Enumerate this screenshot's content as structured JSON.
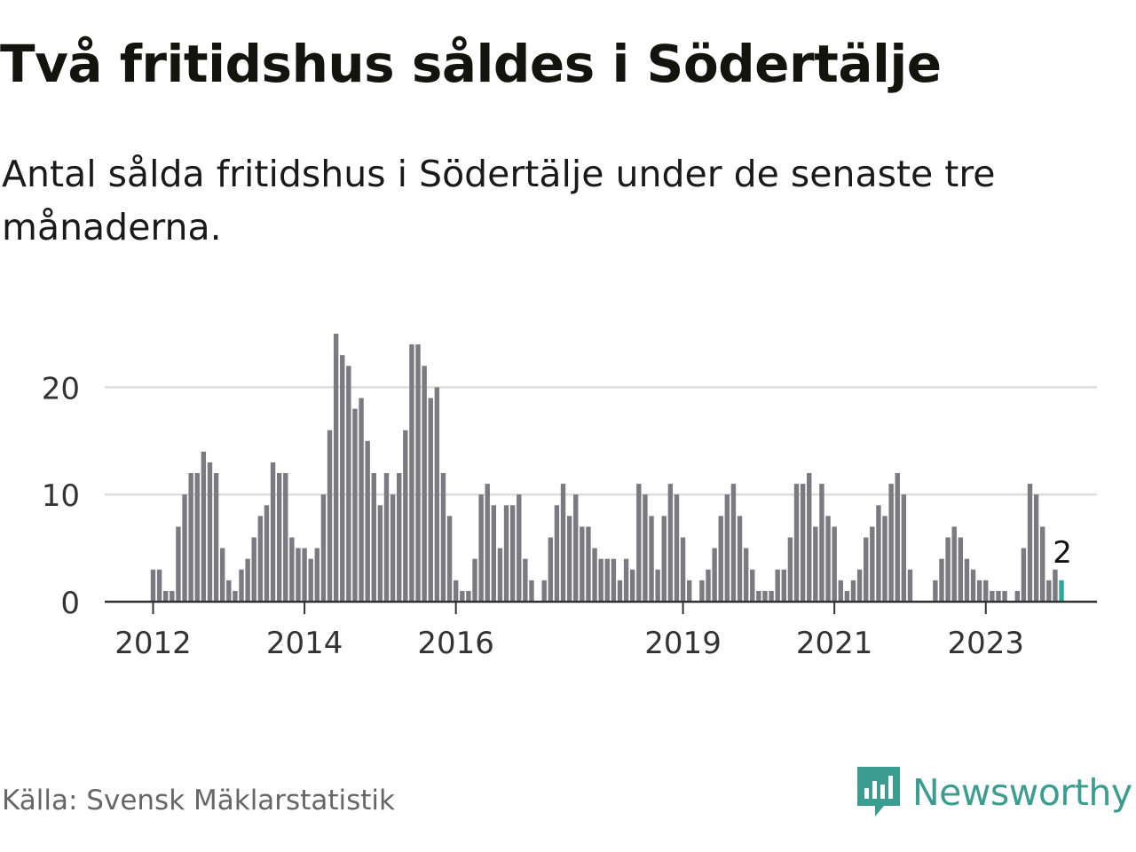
{
  "header": {
    "title": "Två fritidshus såldes i Södertälje",
    "subtitle": "Antal sålda fritidshus i Södertälje under de senaste tre månaderna."
  },
  "footer": {
    "source": "Källa: Svensk Mäklarstatistik",
    "brand": "Newsworthy"
  },
  "colors": {
    "bar": "#7b7a80",
    "highlight": "#2aa89a",
    "grid": "#dddddd",
    "axis": "#333333",
    "brand": "#3a9d8f"
  },
  "chart_data": {
    "type": "bar",
    "title": "Två fritidshus såldes i Södertälje",
    "xlabel": "",
    "ylabel": "",
    "ylim": [
      0,
      25
    ],
    "yticks": [
      0,
      10,
      20
    ],
    "xtick_labels": [
      {
        "label": "2012",
        "index": 0
      },
      {
        "label": "2014",
        "index": 24
      },
      {
        "label": "2016",
        "index": 48
      },
      {
        "label": "2019",
        "index": 84
      },
      {
        "label": "2021",
        "index": 108
      },
      {
        "label": "2023",
        "index": 132
      }
    ],
    "x_start_index": -1,
    "x_end_index": 149,
    "values": [
      3,
      3,
      1,
      1,
      7,
      10,
      12,
      12,
      14,
      13,
      12,
      5,
      2,
      1,
      3,
      4,
      6,
      8,
      9,
      13,
      12,
      12,
      6,
      5,
      5,
      4,
      5,
      10,
      16,
      25,
      23,
      22,
      18,
      19,
      15,
      12,
      9,
      12,
      10,
      12,
      16,
      24,
      24,
      22,
      19,
      20,
      12,
      8,
      2,
      1,
      1,
      4,
      10,
      11,
      9,
      5,
      9,
      9,
      10,
      4,
      2,
      0,
      2,
      6,
      9,
      11,
      8,
      10,
      7,
      7,
      5,
      4,
      4,
      4,
      2,
      4,
      3,
      11,
      10,
      8,
      3,
      8,
      11,
      10,
      6,
      2,
      0,
      2,
      3,
      5,
      8,
      10,
      11,
      8,
      5,
      3,
      1,
      1,
      1,
      3,
      3,
      6,
      11,
      11,
      12,
      7,
      11,
      8,
      7,
      2,
      1,
      2,
      3,
      6,
      7,
      9,
      8,
      11,
      12,
      10,
      3,
      0,
      0,
      0,
      2,
      4,
      6,
      7,
      6,
      4,
      3,
      2,
      2,
      1,
      1,
      1,
      0,
      1,
      5,
      11,
      10,
      7,
      2,
      3,
      2
    ],
    "highlight_last": true,
    "annotation": {
      "text": "2",
      "index": 144
    }
  }
}
